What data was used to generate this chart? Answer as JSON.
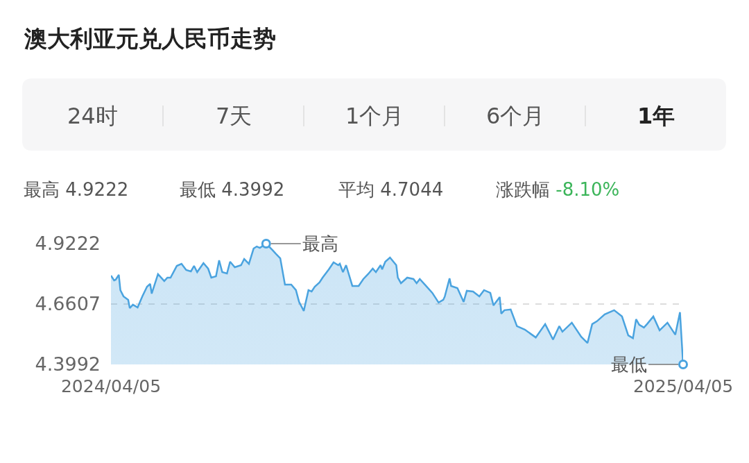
{
  "chart_data": {
    "type": "area",
    "title": "澳大利亚元兑人民币走势",
    "x": [
      "2024-04-05",
      "2024-04-07",
      "2024-04-08",
      "2024-04-10",
      "2024-04-11",
      "2024-04-13",
      "2024-04-16",
      "2024-04-17",
      "2024-04-19",
      "2024-04-22",
      "2024-04-25",
      "2024-04-28",
      "2024-04-30",
      "2024-05-01",
      "2024-05-05",
      "2024-05-09",
      "2024-05-11",
      "2024-05-13",
      "2024-05-17",
      "2024-05-20",
      "2024-05-23",
      "2024-05-26",
      "2024-05-28",
      "2024-05-30",
      "2024-06-03",
      "2024-06-06",
      "2024-06-08",
      "2024-06-11",
      "2024-06-13",
      "2024-06-15",
      "2024-06-18",
      "2024-06-20",
      "2024-06-23",
      "2024-06-27",
      "2024-06-29",
      "2024-07-02",
      "2024-07-05",
      "2024-07-07",
      "2024-07-09",
      "2024-07-13",
      "2024-07-17",
      "2024-07-19",
      "2024-07-22",
      "2024-07-25",
      "2024-07-29",
      "2024-08-01",
      "2024-08-03",
      "2024-08-06",
      "2024-08-09",
      "2024-08-11",
      "2024-08-13",
      "2024-08-16",
      "2024-08-18",
      "2024-08-22",
      "2024-08-25",
      "2024-08-28",
      "2024-08-29",
      "2024-08-31",
      "2024-09-02",
      "2024-09-06",
      "2024-09-10",
      "2024-09-13",
      "2024-09-16",
      "2024-09-19",
      "2024-09-21",
      "2024-09-24",
      "2024-09-25",
      "2024-09-27",
      "2024-09-30",
      "2024-10-04",
      "2024-10-05",
      "2024-10-07",
      "2024-10-11",
      "2024-10-15",
      "2024-10-17",
      "2024-10-19",
      "2024-10-23",
      "2024-10-27",
      "2024-10-31",
      "2024-11-03",
      "2024-11-04",
      "2024-11-07",
      "2024-11-08",
      "2024-11-12",
      "2024-11-16",
      "2024-11-18",
      "2024-11-22",
      "2024-11-26",
      "2024-11-29",
      "2024-12-03",
      "2024-12-05",
      "2024-12-09",
      "2024-12-10",
      "2024-12-12",
      "2024-12-16",
      "2024-12-20",
      "2024-12-25",
      "2025-01-01",
      "2025-01-07",
      "2025-01-12",
      "2025-01-16",
      "2025-01-18",
      "2025-01-24",
      "2025-01-30",
      "2025-02-03",
      "2025-02-06",
      "2025-02-09",
      "2025-02-14",
      "2025-02-20",
      "2025-02-25",
      "2025-03-01",
      "2025-03-04",
      "2025-03-06",
      "2025-03-08",
      "2025-03-11",
      "2025-03-13",
      "2025-03-17",
      "2025-03-21",
      "2025-03-26",
      "2025-03-31",
      "2025-04-03",
      "2025-04-05"
    ],
    "series": [
      {
        "color": "#4aa3df",
        "values": [
          4.784,
          4.763,
          4.766,
          4.787,
          4.721,
          4.694,
          4.679,
          4.643,
          4.658,
          4.646,
          4.694,
          4.736,
          4.748,
          4.706,
          4.79,
          4.76,
          4.775,
          4.775,
          4.826,
          4.835,
          4.808,
          4.802,
          4.826,
          4.799,
          4.838,
          4.814,
          4.775,
          4.781,
          4.85,
          4.799,
          4.793,
          4.844,
          4.82,
          4.829,
          4.856,
          4.835,
          4.901,
          4.91,
          4.904,
          4.9222,
          4.895,
          4.88,
          4.859,
          4.745,
          4.745,
          4.721,
          4.67,
          4.631,
          4.721,
          4.715,
          4.736,
          4.754,
          4.775,
          4.811,
          4.841,
          4.829,
          4.835,
          4.799,
          4.829,
          4.739,
          4.739,
          4.769,
          4.79,
          4.814,
          4.799,
          4.829,
          4.811,
          4.844,
          4.862,
          4.829,
          4.775,
          4.751,
          4.775,
          4.769,
          4.751,
          4.769,
          4.739,
          4.709,
          4.667,
          4.679,
          4.694,
          4.772,
          4.739,
          4.73,
          4.67,
          4.718,
          4.715,
          4.694,
          4.721,
          4.709,
          4.655,
          4.691,
          4.619,
          4.634,
          4.637,
          4.565,
          4.55,
          4.516,
          4.574,
          4.507,
          4.565,
          4.541,
          4.58,
          4.519,
          4.492,
          4.574,
          4.586,
          4.616,
          4.634,
          4.607,
          4.525,
          4.513,
          4.595,
          4.571,
          4.559,
          4.574,
          4.607,
          4.547,
          4.58,
          4.528,
          4.625,
          4.3992
        ]
      }
    ],
    "xlim": [
      "2024-04-05",
      "2025-04-05"
    ],
    "xticks": [
      {
        "value": "2024-04-05",
        "label": "2024/04/05"
      },
      {
        "value": "2025-04-05",
        "label": "2025/04/05"
      }
    ],
    "ylim": [
      4.3992,
      4.9222
    ],
    "yticks": [
      {
        "value": 4.3992,
        "label": "4.3992"
      },
      {
        "value": 4.6607,
        "label": "4.6607"
      },
      {
        "value": 4.9222,
        "label": "4.9222"
      }
    ],
    "grid": "y",
    "marker": "none",
    "annotations": [
      "24时",
      "7天",
      "1个月",
      "6个月",
      "1年",
      "最高 4.9222",
      "最低 4.3992",
      "平均 4.7044",
      "涨跌幅 -8.10%",
      {
        "text": "最高",
        "x": "2024-07-13",
        "y": 4.9222
      },
      {
        "text": "最低",
        "x": "2025-04-05",
        "y": 4.3992
      }
    ]
  }
}
